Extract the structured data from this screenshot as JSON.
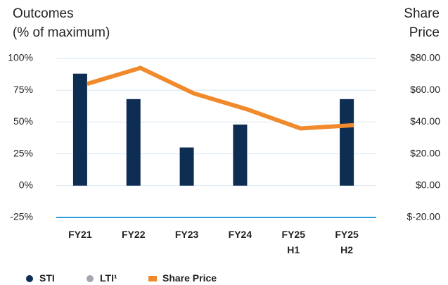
{
  "chart_data": {
    "type": "bar",
    "y_label": "Outcomes\n(% of maximum)",
    "y2_label": "Share\nPrice",
    "categories": [
      "FY21",
      "FY22",
      "FY23",
      "FY24",
      "FY25\nH1",
      "FY25\nH2"
    ],
    "series": [
      {
        "name": "STI",
        "color": "#0d2d52",
        "type": "bar",
        "values": [
          88,
          68,
          30,
          48,
          null,
          68
        ]
      },
      {
        "name": "LTI¹",
        "color": "#a3a6b0",
        "type": "bar",
        "values": [
          null,
          null,
          null,
          null,
          null,
          null
        ]
      },
      {
        "name": "Share Price",
        "color": "#f08a2c",
        "type": "line",
        "axis": "y2",
        "values": [
          64,
          74,
          58,
          48,
          36,
          38
        ]
      }
    ],
    "ylim": [
      -25,
      100
    ],
    "yticks": [
      {
        "value": -25,
        "label": "-25%"
      },
      {
        "value": 0,
        "label": "0%"
      },
      {
        "value": 25,
        "label": "25%"
      },
      {
        "value": 50,
        "label": "50%"
      },
      {
        "value": 75,
        "label": "75%"
      },
      {
        "value": 100,
        "label": "100%"
      }
    ],
    "y2lim": [
      -20,
      80
    ],
    "y2ticks": [
      {
        "value": -20,
        "label": "$-20.00"
      },
      {
        "value": 0,
        "label": "$0.00"
      },
      {
        "value": 20,
        "label": "$20.00"
      },
      {
        "value": 40,
        "label": "$40.00"
      },
      {
        "value": 60,
        "label": "$60.00"
      },
      {
        "value": 80,
        "label": "$80.00"
      }
    ],
    "grid": true,
    "legend": "bottom"
  }
}
